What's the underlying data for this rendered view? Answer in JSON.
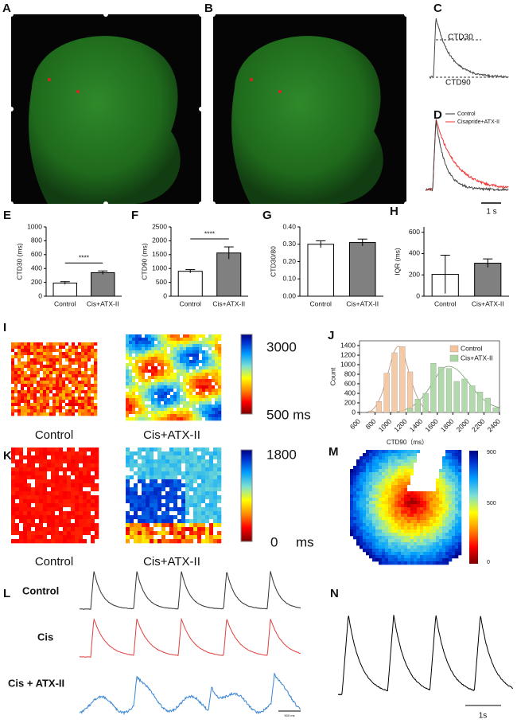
{
  "panel_labels": [
    "A",
    "B",
    "C",
    "D",
    "E",
    "F",
    "G",
    "H",
    "I",
    "J",
    "K",
    "L",
    "M",
    "N"
  ],
  "panel_c": {
    "labels": [
      "CTD30",
      "CTD90"
    ]
  },
  "panel_d": {
    "legend": [
      "Control",
      "Cisapride+ATX-II"
    ],
    "scale_bar": "1 s"
  },
  "chart_data": [
    {
      "type": "bar",
      "ylabel": "CTD30 (ms)",
      "categories": [
        "Control",
        "Cis+ATX-II"
      ],
      "values": [
        190,
        340
      ],
      "errors": [
        20,
        25
      ],
      "colors": [
        "#ffffff",
        "#808080"
      ],
      "ylim": [
        0,
        1000
      ],
      "yticks": [
        0,
        200,
        400,
        600,
        800,
        1000
      ],
      "annotation": "****"
    },
    {
      "type": "bar",
      "ylabel": "CTD90 (ms)",
      "categories": [
        "Control",
        "Cis+ATX-II"
      ],
      "values": [
        900,
        1560
      ],
      "errors": [
        60,
        220
      ],
      "colors": [
        "#ffffff",
        "#808080"
      ],
      "ylim": [
        0,
        2500
      ],
      "yticks": [
        0,
        500,
        1000,
        1500,
        2000,
        2500
      ],
      "annotation": "****"
    },
    {
      "type": "bar",
      "ylabel": "CTD30/80",
      "categories": [
        "Control",
        "Cis+ATX-II"
      ],
      "values": [
        0.3,
        0.31
      ],
      "errors": [
        0.02,
        0.02
      ],
      "colors": [
        "#ffffff",
        "#808080"
      ],
      "ylim": [
        0,
        0.4
      ],
      "yticks": [
        {
          "value": 0,
          "label": "0.00"
        },
        {
          "value": 0.1,
          "label": "0.10"
        },
        {
          "value": 0.2,
          "label": "0.20"
        },
        {
          "value": 0.3,
          "label": "0.30"
        },
        {
          "value": 0.4,
          "label": "0.40"
        }
      ]
    },
    {
      "type": "bar",
      "ylabel": "IQR (ms)",
      "categories": [
        "Control",
        "Cis+ATX-II"
      ],
      "values": [
        205,
        310
      ],
      "errors": [
        180,
        40
      ],
      "colors": [
        "#ffffff",
        "#808080"
      ],
      "ylim": [
        0,
        650
      ],
      "yticks": [
        0,
        200,
        400,
        600
      ]
    },
    {
      "type": "histogram",
      "ylabel": "Count",
      "bins": [
        600,
        700,
        800,
        900,
        1000,
        1100,
        1200,
        1300,
        1400,
        1500,
        1600,
        1700,
        1800,
        1900,
        2000,
        2100,
        2200,
        2300,
        2400
      ],
      "series": [
        {
          "name": "Control",
          "color": "#f6c49c",
          "values": [
            0,
            30,
            230,
            820,
            1250,
            1380,
            850,
            180,
            20,
            0,
            0,
            0,
            0,
            0,
            0,
            0,
            0,
            0
          ]
        },
        {
          "name": "Cis+ATX-II",
          "color": "#a9d6a1",
          "values": [
            0,
            0,
            0,
            0,
            0,
            0,
            90,
            280,
            400,
            1030,
            950,
            920,
            650,
            700,
            560,
            430,
            300,
            100
          ]
        }
      ],
      "xlim": [
        600,
        2400
      ],
      "xticks": [
        600,
        800,
        1000,
        1200,
        1400,
        1600,
        1800,
        2000,
        2200,
        2400
      ],
      "ylim": [
        0,
        1500
      ],
      "yticks": [
        0,
        200,
        400,
        600,
        800,
        1000,
        1200,
        1400
      ],
      "legend": "upper right"
    }
  ],
  "panel_i": {
    "captions": [
      "Control",
      "Cis+ATX-II"
    ],
    "colorbar_labels": [
      "3000",
      "500 ms"
    ]
  },
  "panel_k": {
    "captions": [
      "Control",
      "Cis+ATX-II"
    ],
    "colorbar_labels": [
      "1800",
      "0",
      "ms"
    ]
  },
  "panel_m": {
    "title": "CTD90（ms）",
    "colorbar_labels": [
      "900",
      "500",
      "0"
    ]
  },
  "panel_l": {
    "row_labels": [
      "Control",
      "Cis",
      "Cis + ATX-II"
    ],
    "scale_bar": "500 ms"
  },
  "panel_n": {
    "scale_bar": "1s"
  }
}
